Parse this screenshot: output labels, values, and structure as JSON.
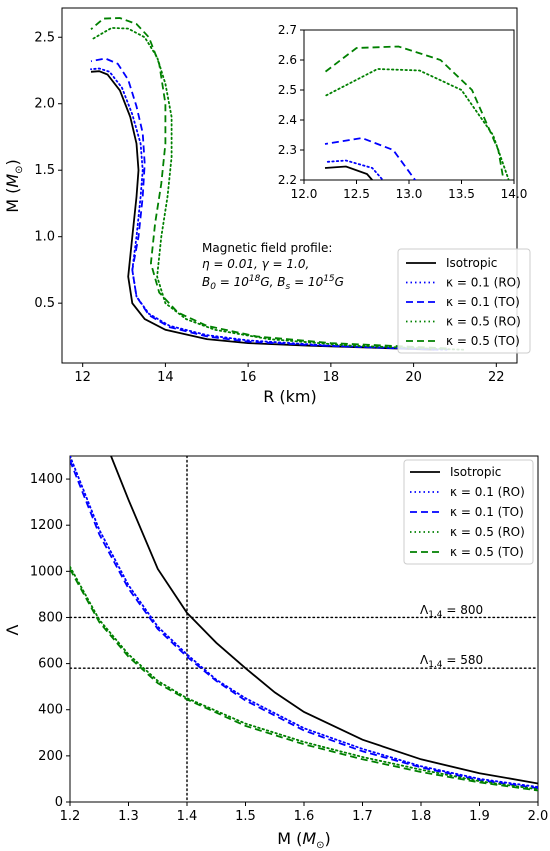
{
  "chart_data": [
    {
      "type": "line",
      "xlabel": "R (km)",
      "ylabel_main": "M (",
      "ylabel_sym": "M",
      "ylabel_sub": "⊙",
      "ylabel_close": ")",
      "xlim": [
        11.5,
        22.5
      ],
      "ylim": [
        0.05,
        2.72
      ],
      "xticks": [
        12,
        14,
        16,
        18,
        20,
        22
      ],
      "yticks": [
        0.5,
        1.0,
        1.5,
        2.0,
        2.5
      ],
      "xtick_labels": [
        "12",
        "14",
        "16",
        "18",
        "20",
        "22"
      ],
      "ytick_labels": [
        "0.5",
        "1.0",
        "1.5",
        "2.0",
        "2.5"
      ],
      "legend_position": "lower-right",
      "annotation": {
        "l1": "Magnetic field profile:",
        "l2": "η = 0.01, γ = 1.0,",
        "l3_a": "B",
        "l3_a_sub": "0",
        "l3_b": " = 10",
        "l3_b_sup": "18",
        "l3_c": "G, B",
        "l3_c_sub": "s",
        "l3_d": " = 10",
        "l3_d_sup": "15",
        "l3_e": "G"
      },
      "series": [
        {
          "name": "Isotropic",
          "color": "#000000",
          "style": "solid",
          "points": [
            [
              20.5,
              0.15
            ],
            [
              17.5,
              0.18
            ],
            [
              16,
              0.2
            ],
            [
              15,
              0.23
            ],
            [
              14,
              0.3
            ],
            [
              13.5,
              0.38
            ],
            [
              13.2,
              0.5
            ],
            [
              13.1,
              0.7
            ],
            [
              13.2,
              1.0
            ],
            [
              13.3,
              1.3
            ],
            [
              13.35,
              1.5
            ],
            [
              13.3,
              1.7
            ],
            [
              13.15,
              1.9
            ],
            [
              12.9,
              2.1
            ],
            [
              12.6,
              2.22
            ],
            [
              12.4,
              2.245
            ],
            [
              12.2,
              2.24
            ]
          ]
        },
        {
          "name": "κ = 0.1 (RO)",
          "color": "#0000ff",
          "style": "dotted",
          "points": [
            [
              20.8,
              0.15
            ],
            [
              18,
              0.18
            ],
            [
              16,
              0.22
            ],
            [
              15,
              0.26
            ],
            [
              14.1,
              0.33
            ],
            [
              13.6,
              0.42
            ],
            [
              13.3,
              0.55
            ],
            [
              13.2,
              0.75
            ],
            [
              13.3,
              1.0
            ],
            [
              13.4,
              1.3
            ],
            [
              13.45,
              1.5
            ],
            [
              13.4,
              1.7
            ],
            [
              13.2,
              1.92
            ],
            [
              12.95,
              2.12
            ],
            [
              12.65,
              2.24
            ],
            [
              12.4,
              2.265
            ],
            [
              12.2,
              2.26
            ]
          ]
        },
        {
          "name": "κ = 0.1 (TO)",
          "color": "#0000ff",
          "style": "dashed",
          "points": [
            [
              20.6,
              0.15
            ],
            [
              17.8,
              0.18
            ],
            [
              16,
              0.21
            ],
            [
              15,
              0.25
            ],
            [
              14.1,
              0.32
            ],
            [
              13.6,
              0.41
            ],
            [
              13.3,
              0.55
            ],
            [
              13.2,
              0.75
            ],
            [
              13.35,
              1.0
            ],
            [
              13.45,
              1.3
            ],
            [
              13.5,
              1.55
            ],
            [
              13.45,
              1.78
            ],
            [
              13.3,
              1.98
            ],
            [
              13.1,
              2.18
            ],
            [
              12.85,
              2.3
            ],
            [
              12.55,
              2.34
            ],
            [
              12.2,
              2.32
            ]
          ]
        },
        {
          "name": "κ = 0.5 (RO)",
          "color": "#008000",
          "style": "dotted",
          "points": [
            [
              21.2,
              0.15
            ],
            [
              18.5,
              0.18
            ],
            [
              16.5,
              0.23
            ],
            [
              15.2,
              0.3
            ],
            [
              14.5,
              0.38
            ],
            [
              14.0,
              0.5
            ],
            [
              13.8,
              0.7
            ],
            [
              13.9,
              1.0
            ],
            [
              14.05,
              1.3
            ],
            [
              14.15,
              1.6
            ],
            [
              14.15,
              1.9
            ],
            [
              14.0,
              2.15
            ],
            [
              13.8,
              2.35
            ],
            [
              13.5,
              2.5
            ],
            [
              13.1,
              2.565
            ],
            [
              12.7,
              2.57
            ],
            [
              12.2,
              2.48
            ]
          ]
        },
        {
          "name": "κ = 0.5 (TO)",
          "color": "#008000",
          "style": "dashed",
          "points": [
            [
              20.8,
              0.16
            ],
            [
              18,
              0.2
            ],
            [
              16.2,
              0.25
            ],
            [
              15,
              0.33
            ],
            [
              14.3,
              0.43
            ],
            [
              13.85,
              0.58
            ],
            [
              13.65,
              0.8
            ],
            [
              13.75,
              1.1
            ],
            [
              13.9,
              1.4
            ],
            [
              14.0,
              1.7
            ],
            [
              14.0,
              2.0
            ],
            [
              13.85,
              2.3
            ],
            [
              13.6,
              2.5
            ],
            [
              13.3,
              2.6
            ],
            [
              12.9,
              2.645
            ],
            [
              12.5,
              2.64
            ],
            [
              12.2,
              2.56
            ]
          ]
        }
      ]
    },
    {
      "type": "line",
      "role": "inset",
      "xlim": [
        12.0,
        14.0
      ],
      "ylim": [
        2.2,
        2.7
      ],
      "xticks": [
        12.0,
        12.5,
        13.0,
        13.5,
        14.0
      ],
      "yticks": [
        2.2,
        2.3,
        2.4,
        2.5,
        2.6,
        2.7
      ],
      "xtick_labels": [
        "12.0",
        "12.5",
        "13.0",
        "13.5",
        "14.0"
      ],
      "ytick_labels": [
        "2.2",
        "2.3",
        "2.4",
        "2.5",
        "2.6",
        "2.7"
      ]
    },
    {
      "type": "line",
      "xlabel_main": "M (",
      "xlabel_sym": "M",
      "xlabel_sub": "⊙",
      "xlabel_close": ")",
      "ylabel": "Λ",
      "xlim": [
        1.2,
        2.0
      ],
      "ylim": [
        0,
        1500
      ],
      "xticks": [
        1.2,
        1.3,
        1.4,
        1.5,
        1.6,
        1.7,
        1.8,
        1.9,
        2.0
      ],
      "yticks": [
        0,
        200,
        400,
        600,
        800,
        1000,
        1200,
        1400
      ],
      "xtick_labels": [
        "1.2",
        "1.3",
        "1.4",
        "1.5",
        "1.6",
        "1.7",
        "1.8",
        "1.9",
        "2.0"
      ],
      "ytick_labels": [
        "0",
        "200",
        "400",
        "600",
        "800",
        "1000",
        "1200",
        "1400"
      ],
      "legend_position": "top-right",
      "reference_lines": {
        "vertical_x": 1.4,
        "horizontal_y": [
          800,
          580
        ]
      },
      "annotations": [
        {
          "base": "Λ",
          "sub": "1.4",
          "rest": " = 800"
        },
        {
          "base": "Λ",
          "sub": "1.4",
          "rest": " = 580"
        }
      ],
      "series": [
        {
          "name": "Isotropic",
          "color": "#000000",
          "style": "solid",
          "points": [
            [
              1.27,
              1500
            ],
            [
              1.3,
              1310
            ],
            [
              1.35,
              1010
            ],
            [
              1.4,
              820
            ],
            [
              1.45,
              690
            ],
            [
              1.5,
              580
            ],
            [
              1.55,
              475
            ],
            [
              1.6,
              390
            ],
            [
              1.7,
              270
            ],
            [
              1.8,
              185
            ],
            [
              1.9,
              125
            ],
            [
              2.0,
              80
            ]
          ]
        },
        {
          "name": "κ = 0.1 (RO)",
          "color": "#0000ff",
          "style": "dotted",
          "points": [
            [
              1.2,
              1500
            ],
            [
              1.25,
              1180
            ],
            [
              1.3,
              940
            ],
            [
              1.35,
              760
            ],
            [
              1.4,
              640
            ],
            [
              1.45,
              530
            ],
            [
              1.5,
              450
            ],
            [
              1.6,
              320
            ],
            [
              1.7,
              230
            ],
            [
              1.8,
              155
            ],
            [
              1.9,
              100
            ],
            [
              2.0,
              65
            ]
          ]
        },
        {
          "name": "κ = 0.1 (TO)",
          "color": "#0000ff",
          "style": "dashed",
          "points": [
            [
              1.2,
              1480
            ],
            [
              1.25,
              1160
            ],
            [
              1.3,
              925
            ],
            [
              1.35,
              750
            ],
            [
              1.4,
              630
            ],
            [
              1.45,
              525
            ],
            [
              1.5,
              440
            ],
            [
              1.6,
              310
            ],
            [
              1.7,
              220
            ],
            [
              1.8,
              150
            ],
            [
              1.9,
              95
            ],
            [
              2.0,
              60
            ]
          ]
        },
        {
          "name": "κ = 0.5 (RO)",
          "color": "#008000",
          "style": "dotted",
          "points": [
            [
              1.2,
              1020
            ],
            [
              1.25,
              790
            ],
            [
              1.3,
              640
            ],
            [
              1.35,
              525
            ],
            [
              1.4,
              450
            ],
            [
              1.5,
              340
            ],
            [
              1.6,
              260
            ],
            [
              1.7,
              195
            ],
            [
              1.8,
              140
            ],
            [
              1.9,
              90
            ],
            [
              2.0,
              55
            ]
          ]
        },
        {
          "name": "κ = 0.5 (TO)",
          "color": "#008000",
          "style": "dashed",
          "points": [
            [
              1.2,
              1010
            ],
            [
              1.25,
              780
            ],
            [
              1.3,
              630
            ],
            [
              1.35,
              515
            ],
            [
              1.4,
              445
            ],
            [
              1.5,
              330
            ],
            [
              1.6,
              250
            ],
            [
              1.7,
              185
            ],
            [
              1.8,
              130
            ],
            [
              1.9,
              85
            ],
            [
              2.0,
              50
            ]
          ]
        }
      ]
    }
  ]
}
